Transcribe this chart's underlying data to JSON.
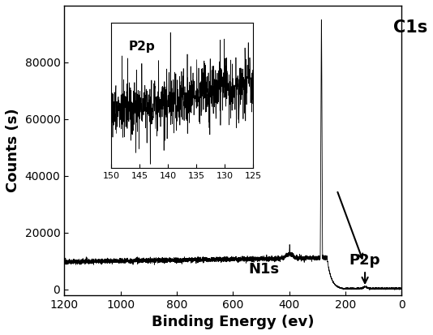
{
  "xlabel": "Binding Energy (ev)",
  "ylabel": "Counts (s)",
  "xlim": [
    1200,
    0
  ],
  "ylim": [
    -2000,
    100000
  ],
  "yticks": [
    0,
    20000,
    40000,
    60000,
    80000
  ],
  "xticks": [
    1200,
    1000,
    800,
    600,
    400,
    200,
    0
  ],
  "baseline_level": 10000,
  "baseline_noise_amp": 400,
  "c1s_peak_x": 285,
  "c1s_peak_height": 95000,
  "inset_xticks": [
    150,
    145,
    140,
    135,
    130,
    125
  ],
  "inset_label": "P2p",
  "c1s_label": "C1s",
  "n1s_label": "N1s",
  "p2p_label": "P2p",
  "bg_color": "#ffffff",
  "line_color": "#000000",
  "font_size_axis_label": 13,
  "font_size_tick": 10,
  "font_size_annotation": 13
}
